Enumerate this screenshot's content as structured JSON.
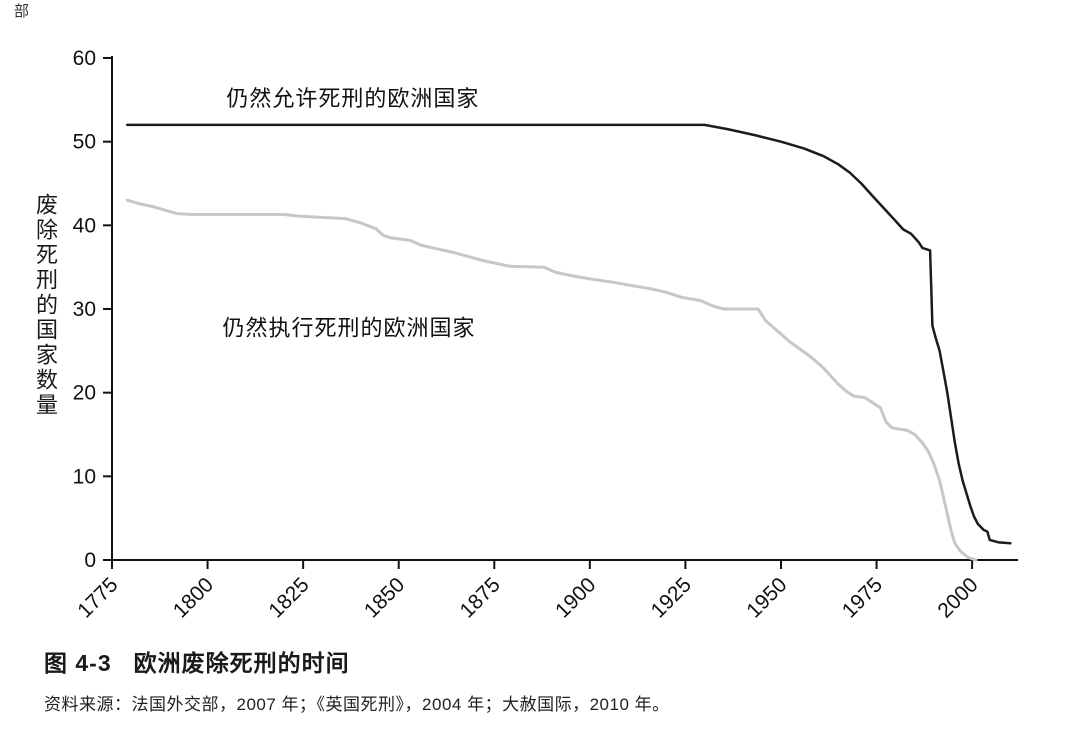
{
  "page": {
    "fragment": "部"
  },
  "caption": {
    "label": "图 4-3",
    "title": "欧洲废除死刑的时间",
    "source": "资料来源：法国外交部，2007 年；《英国死刑》，2004 年；大赦国际，2010 年。"
  },
  "chart_data": {
    "type": "line",
    "title": "图 4-3 欧洲废除死刑的时间",
    "ylabel": "废除死刑的国家数量",
    "xlabel": "",
    "xlim": [
      1775,
      2012
    ],
    "ylim": [
      0,
      60
    ],
    "x_ticks": [
      1775,
      1800,
      1825,
      1850,
      1875,
      1900,
      1925,
      1950,
      1975,
      2000
    ],
    "y_ticks": [
      0,
      10,
      20,
      30,
      40,
      50,
      60
    ],
    "grid": false,
    "legend_position": "inline-annotations",
    "series": [
      {
        "name": "仍然允许死刑的欧洲国家",
        "color": "#1c1c1c",
        "width": 2.5,
        "points": [
          [
            1779,
            52
          ],
          [
            1930,
            52
          ],
          [
            1936,
            51.5
          ],
          [
            1943,
            50.8
          ],
          [
            1950,
            50
          ],
          [
            1956,
            49.2
          ],
          [
            1961,
            48.3
          ],
          [
            1965,
            47.3
          ],
          [
            1968,
            46.3
          ],
          [
            1971,
            45
          ],
          [
            1974,
            43.5
          ],
          [
            1977,
            42
          ],
          [
            1980,
            40.5
          ],
          [
            1982,
            39.5
          ],
          [
            1984,
            39
          ],
          [
            1986,
            38
          ],
          [
            1987,
            37.3
          ],
          [
            1989,
            37
          ],
          [
            1989.6,
            28
          ],
          [
            1990.5,
            26.5
          ],
          [
            1991.5,
            25
          ],
          [
            1992.5,
            22.5
          ],
          [
            1993.5,
            20
          ],
          [
            1994.5,
            17
          ],
          [
            1995.5,
            14
          ],
          [
            1996.5,
            11.5
          ],
          [
            1997.5,
            9.5
          ],
          [
            1998.5,
            8
          ],
          [
            1999.5,
            6.5
          ],
          [
            2000.5,
            5.2
          ],
          [
            2001.5,
            4.3
          ],
          [
            2003,
            3.6
          ],
          [
            2004,
            3.4
          ],
          [
            2004.6,
            2.4
          ],
          [
            2007,
            2.1
          ],
          [
            2010,
            2
          ]
        ]
      },
      {
        "name": "仍然执行死刑的欧洲国家",
        "color": "#c7c7c7",
        "width": 3,
        "points": [
          [
            1779,
            43
          ],
          [
            1782,
            42.6
          ],
          [
            1786,
            42.2
          ],
          [
            1789,
            41.8
          ],
          [
            1792,
            41.4
          ],
          [
            1796,
            41.3
          ],
          [
            1820,
            41.3
          ],
          [
            1824,
            41.1
          ],
          [
            1828,
            41
          ],
          [
            1836,
            40.8
          ],
          [
            1840,
            40.3
          ],
          [
            1844,
            39.6
          ],
          [
            1846,
            38.8
          ],
          [
            1848,
            38.5
          ],
          [
            1853,
            38.2
          ],
          [
            1856,
            37.6
          ],
          [
            1860,
            37.2
          ],
          [
            1864,
            36.8
          ],
          [
            1868,
            36.3
          ],
          [
            1872,
            35.8
          ],
          [
            1876,
            35.4
          ],
          [
            1879,
            35.1
          ],
          [
            1888,
            35
          ],
          [
            1891,
            34.4
          ],
          [
            1895,
            34
          ],
          [
            1900,
            33.6
          ],
          [
            1906,
            33.2
          ],
          [
            1911,
            32.8
          ],
          [
            1916,
            32.4
          ],
          [
            1920,
            32
          ],
          [
            1924,
            31.4
          ],
          [
            1929,
            31
          ],
          [
            1932,
            30.4
          ],
          [
            1935,
            30
          ],
          [
            1944,
            30
          ],
          [
            1946,
            28.6
          ],
          [
            1949,
            27.4
          ],
          [
            1952,
            26.2
          ],
          [
            1955,
            25.2
          ],
          [
            1958,
            24.2
          ],
          [
            1961,
            23
          ],
          [
            1963,
            22
          ],
          [
            1965,
            21
          ],
          [
            1967,
            20.2
          ],
          [
            1969,
            19.6
          ],
          [
            1972,
            19.4
          ],
          [
            1974,
            18.8
          ],
          [
            1976,
            18.2
          ],
          [
            1977.5,
            16.5
          ],
          [
            1979,
            15.8
          ],
          [
            1983,
            15.5
          ],
          [
            1985,
            15
          ],
          [
            1987,
            14
          ],
          [
            1988.5,
            13
          ],
          [
            1990,
            11.5
          ],
          [
            1991.5,
            9.5
          ],
          [
            1992.5,
            7.5
          ],
          [
            1993.5,
            5.5
          ],
          [
            1994.5,
            3.5
          ],
          [
            1995.5,
            2
          ],
          [
            1997,
            1
          ],
          [
            1999,
            0.3
          ],
          [
            2001,
            0
          ]
        ]
      }
    ],
    "annotations": [
      {
        "text": "仍然允许死刑的欧洲国家",
        "x": 1838,
        "y": 55.2
      },
      {
        "text": "仍然执行死刑的欧洲国家",
        "x": 1837,
        "y": 27.8
      }
    ]
  }
}
